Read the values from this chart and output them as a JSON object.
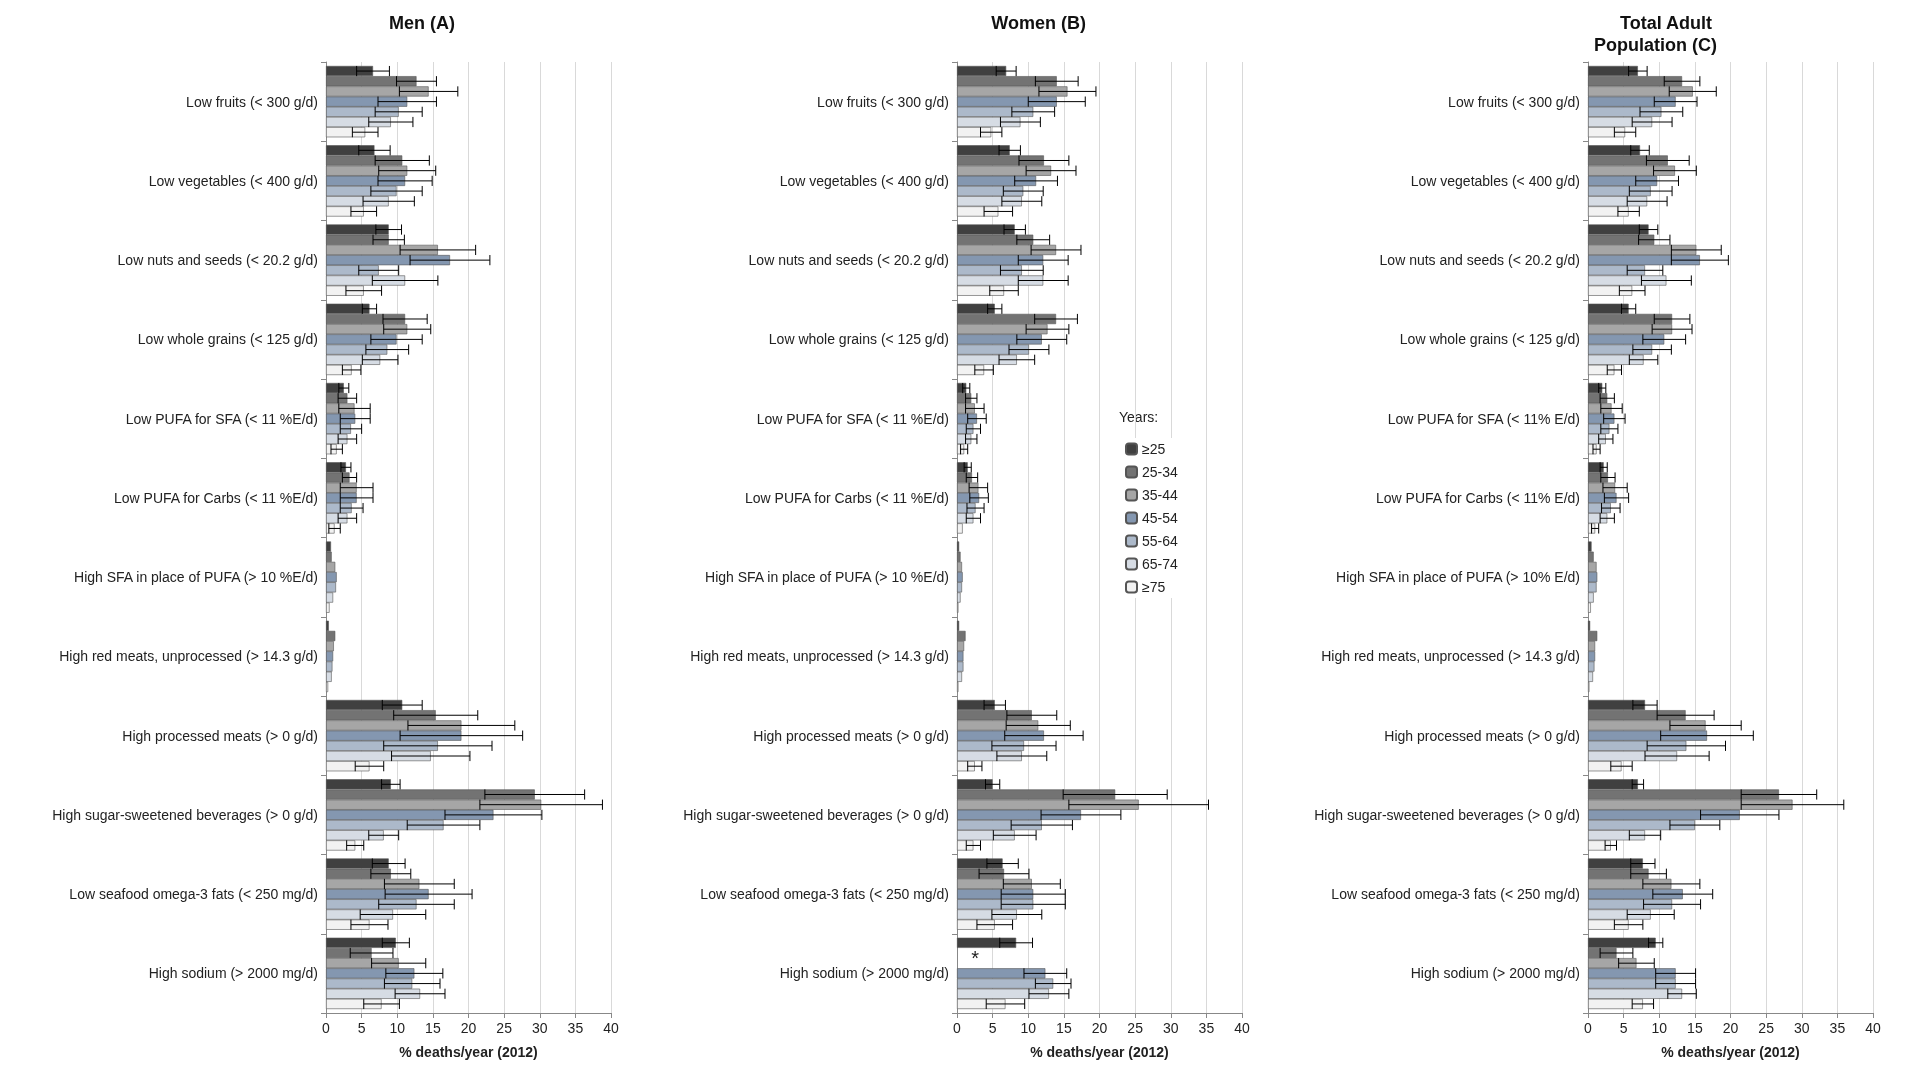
{
  "chart_data": [
    {
      "type": "bar",
      "orientation": "horizontal",
      "title": "Men (A)",
      "xlabel": "% deaths/year (2012)",
      "xlim": [
        0,
        40
      ],
      "xticks": [
        0,
        5,
        10,
        15,
        20,
        25,
        30,
        35,
        40
      ],
      "grid": "x",
      "legend": false,
      "categories": [
        "Low fruits (< 300 g/d)",
        "Low vegetables (< 400 g/d)",
        "Low nuts and seeds (< 20.2 g/d)",
        "Low whole grains (< 125 g/d)",
        "Low PUFA for SFA (< 11 %E/d)",
        "Low PUFA for Carbs (< 11 %E/d)",
        "High SFA in place of PUFA (> 10 %E/d)",
        "High red meats, unprocessed (> 14.3 g/d)",
        "High processed meats (> 0 g/d)",
        "High sugar-sweetened beverages (> 0 g/d)",
        "Low seafood omega-3 fats (< 250 mg/d)",
        "High sodium (> 2000 mg/d)"
      ],
      "series": [
        {
          "color": "#404040",
          "values": [
            6.6,
            6.8,
            8.8,
            6.1,
            2.5,
            2.8,
            0.7,
            0.4,
            10.7,
            9.1,
            8.8,
            9.8
          ],
          "errors": [
            2.3,
            2.2,
            1.8,
            1,
            0.7,
            0.7,
            null,
            null,
            2.8,
            1.3,
            2.3,
            1.9
          ]
        },
        {
          "color": "#737373",
          "values": [
            12.7,
            10.7,
            8.8,
            11.1,
            3.0,
            3.3,
            0.8,
            1.3,
            15.4,
            29.3,
            9.1,
            6.4
          ],
          "errors": [
            2.8,
            3.8,
            2.2,
            3.1,
            1.3,
            1,
            null,
            null,
            5.9,
            7,
            2.8,
            3
          ]
        },
        {
          "color": "#a6a6a6",
          "values": [
            14.4,
            11.4,
            15.7,
            11.4,
            4.0,
            4.3,
            1.3,
            1.1,
            19.0,
            30.2,
            13.1,
            10.2
          ],
          "errors": [
            4.1,
            4,
            5.3,
            3.3,
            2.2,
            2.3,
            null,
            null,
            7.5,
            8.6,
            4.9,
            3.8
          ]
        },
        {
          "color": "#8497b0",
          "values": [
            11.4,
            11.1,
            17.4,
            9.9,
            4.1,
            4.3,
            1.5,
            1.0,
            19.0,
            23.5,
            14.4,
            12.4
          ],
          "errors": [
            4.1,
            3.8,
            5.6,
            3.6,
            2.1,
            2.3,
            null,
            null,
            8.6,
            6.8,
            6.1,
            4
          ]
        },
        {
          "color": "#acb9ca",
          "values": [
            10.2,
            9.9,
            7.4,
            8.6,
            3.5,
            3.6,
            1.4,
            0.9,
            15.7,
            16.5,
            12.7,
            12.1
          ],
          "errors": [
            3.3,
            3.6,
            2.8,
            3,
            1.5,
            1.6,
            null,
            null,
            7.6,
            5.1,
            5.3,
            3.9
          ]
        },
        {
          "color": "#d6dce4",
          "values": [
            9.1,
            8.8,
            11.1,
            7.6,
            3.0,
            3.0,
            1.0,
            0.8,
            14.7,
            8.1,
            9.4,
            13.2
          ],
          "errors": [
            3.1,
            3.6,
            4.6,
            2.5,
            1.3,
            1.3,
            null,
            null,
            5.5,
            2.1,
            4.6,
            3.5
          ]
        },
        {
          "color": "#f2f2f2",
          "values": [
            5.5,
            5.3,
            5.3,
            3.6,
            1.5,
            1.2,
            0.5,
            0.3,
            6.1,
            4.1,
            6.1,
            7.8
          ],
          "errors": [
            1.8,
            1.8,
            2.5,
            1.3,
            0.8,
            0.8,
            null,
            null,
            2,
            1.2,
            2.6,
            2.5
          ]
        }
      ]
    },
    {
      "type": "bar",
      "orientation": "horizontal",
      "title": "Women (B)",
      "xlabel": "% deaths/year (2012)",
      "xlim": [
        0,
        40
      ],
      "xticks": [
        0,
        5,
        10,
        15,
        20,
        25,
        30,
        35,
        40
      ],
      "grid": "x",
      "legend": "right",
      "legend_title": "Years:",
      "categories": [
        "Low fruits (< 300 g/d)",
        "Low vegetables (< 400 g/d)",
        "Low nuts and seeds (< 20.2 g/d)",
        "Low whole grains (< 125 g/d)",
        "Low PUFA for SFA (< 11 %E/d)",
        "Low PUFA for Carbs (< 11 %E/d)",
        "High SFA in place of PUFA (> 10 %E/d)",
        "High red meats, unprocessed (> 14.3 g/d)",
        "High processed meats (> 0 g/d)",
        "High sugar-sweetened beverages (> 0 g/d)",
        "Low seafood omega-3 fats (< 250 mg/d)",
        "High sodium (> 2000 mg/d)"
      ],
      "annotations": [
        {
          "text": "*",
          "x": 2,
          "y": "High sodium (> 2000 mg/d)"
        }
      ],
      "series": [
        {
          "name": "≥25",
          "color": "#404040",
          "values": [
            6.9,
            7.4,
            8.1,
            5.3,
            1.3,
            1.5,
            0.3,
            0.3,
            5.3,
            5.0,
            6.4,
            8.3
          ],
          "errors": [
            1.4,
            1.5,
            1.5,
            1,
            0.5,
            0.5,
            null,
            null,
            1.5,
            1,
            2.2,
            2.3
          ]
        },
        {
          "name": "25-34",
          "color": "#737373",
          "values": [
            14.0,
            12.2,
            10.7,
            13.9,
            2.0,
            2.1,
            0.5,
            1.2,
            10.5,
            22.2,
            6.6,
            null
          ],
          "errors": [
            3,
            3.5,
            2.3,
            3,
            0.8,
            0.8,
            null,
            null,
            3.5,
            7.3,
            3.5,
            null
          ]
        },
        {
          "name": "35-44",
          "color": "#a6a6a6",
          "values": [
            15.5,
            13.2,
            13.9,
            12.7,
            2.5,
            3.0,
            0.7,
            1.0,
            11.4,
            25.5,
            10.5,
            null
          ],
          "errors": [
            4,
            3.5,
            3.5,
            3,
            1.3,
            1.3,
            null,
            null,
            4.5,
            9.8,
            4,
            null
          ]
        },
        {
          "name": "45-54",
          "color": "#8497b0",
          "values": [
            14.0,
            11.1,
            12.1,
            11.9,
            2.8,
            3.1,
            0.8,
            0.9,
            12.2,
            17.4,
            10.7,
            12.4
          ],
          "errors": [
            4,
            3,
            3.5,
            3.5,
            1.3,
            1.3,
            null,
            null,
            5.5,
            5.6,
            4.5,
            3
          ]
        },
        {
          "name": "55-64",
          "color": "#acb9ca",
          "values": [
            10.7,
            9.3,
            9.1,
            10.1,
            2.3,
            2.6,
            0.7,
            0.9,
            9.4,
            11.9,
            10.7,
            13.5
          ],
          "errors": [
            3,
            2.8,
            3,
            2.8,
            1,
            1.2,
            null,
            null,
            4.5,
            4.3,
            4.5,
            2.5
          ]
        },
        {
          "name": "65-74",
          "color": "#d6dce4",
          "values": [
            8.9,
            9.1,
            12.1,
            8.4,
            2.0,
            2.3,
            0.5,
            0.7,
            9.1,
            8.1,
            8.4,
            12.9
          ],
          "errors": [
            2.8,
            2.8,
            3.5,
            2.5,
            0.8,
            1,
            null,
            null,
            3.5,
            3,
            3.5,
            2.8
          ]
        },
        {
          "name": "≥75",
          "color": "#f2f2f2",
          "values": [
            4.8,
            5.8,
            6.6,
            3.8,
            1.0,
            0.8,
            0.2,
            0.2,
            2.5,
            2.3,
            5.3,
            6.8
          ],
          "errors": [
            1.5,
            2,
            2,
            1.3,
            0.5,
            null,
            null,
            null,
            1,
            1,
            2.5,
            2.7
          ]
        }
      ]
    },
    {
      "type": "bar",
      "orientation": "horizontal",
      "title": "Total Adult Population (C)",
      "xlabel": "% deaths/year (2012)",
      "xlim": [
        0,
        40
      ],
      "xticks": [
        0,
        5,
        10,
        15,
        20,
        25,
        30,
        35,
        40
      ],
      "grid": "x",
      "legend": false,
      "categories": [
        "Low fruits (< 300 g/d)",
        "Low vegetables (< 400 g/d)",
        "Low nuts and seeds (< 20.2 g/d)",
        "Low whole grains (< 125 g/d)",
        "Low PUFA for SFA (< 11% E/d)",
        "Low PUFA for Carbs (< 11% E/d)",
        "High SFA in place of PUFA (> 10% E/d)",
        "High red meats, unprocessed (> 14.3 g/d)",
        "High processed meats (> 0 g/d)",
        "High sugar-sweetened beverages (> 0 g/d)",
        "Low seafood omega-3 fats (< 250 mg/d)",
        "High sodium (> 2000 mg/d)"
      ],
      "series": [
        {
          "color": "#404040",
          "values": [
            7.0,
            7.3,
            8.5,
            5.7,
            2.0,
            2.2,
            0.5,
            0.3,
            8.0,
            7.0,
            7.7,
            9.5
          ],
          "errors": [
            1.3,
            1.3,
            1.3,
            1,
            0.5,
            0.5,
            null,
            null,
            1.7,
            0.8,
            1.7,
            1
          ]
        },
        {
          "color": "#737373",
          "values": [
            13.2,
            11.2,
            9.3,
            11.8,
            2.7,
            2.8,
            0.8,
            1.3,
            13.7,
            26.8,
            8.5,
            4.0
          ],
          "errors": [
            2.5,
            3,
            2.2,
            2.5,
            1,
            1,
            null,
            null,
            4,
            5.3,
            2.5,
            2.3
          ]
        },
        {
          "color": "#a6a6a6",
          "values": [
            14.7,
            12.2,
            15.2,
            11.8,
            3.3,
            3.8,
            1.2,
            1.0,
            16.5,
            28.7,
            11.7,
            6.8
          ],
          "errors": [
            3.3,
            3,
            3.5,
            2.8,
            1.5,
            1.7,
            null,
            null,
            5,
            7.2,
            4,
            2.5
          ]
        },
        {
          "color": "#8497b0",
          "values": [
            12.3,
            9.7,
            15.7,
            10.7,
            3.7,
            4.0,
            1.3,
            1.0,
            16.7,
            21.3,
            13.3,
            12.3
          ],
          "errors": [
            3,
            3,
            4,
            3,
            1.5,
            1.7,
            null,
            null,
            6.5,
            5.5,
            4.2,
            2.8
          ]
        },
        {
          "color": "#acb9ca",
          "values": [
            10.3,
            8.8,
            8.0,
            9.0,
            3.0,
            3.2,
            1.2,
            0.9,
            13.8,
            15.0,
            11.8,
            12.3
          ],
          "errors": [
            3,
            3,
            2.5,
            2.7,
            1.2,
            1.3,
            null,
            null,
            5.5,
            3.5,
            4,
            2.8
          ]
        },
        {
          "color": "#d6dce4",
          "values": [
            9.0,
            8.3,
            11.0,
            7.8,
            2.5,
            2.7,
            0.8,
            0.7,
            12.5,
            8.0,
            8.8,
            13.2
          ],
          "errors": [
            2.8,
            2.8,
            3.5,
            2,
            1,
            1,
            null,
            null,
            4.5,
            2.2,
            3.3,
            2
          ]
        },
        {
          "color": "#f2f2f2",
          "values": [
            5.2,
            5.7,
            6.2,
            3.7,
            1.2,
            1.0,
            0.4,
            0.2,
            4.7,
            3.2,
            5.7,
            7.7
          ],
          "errors": [
            1.5,
            1.5,
            1.8,
            1,
            0.5,
            0.5,
            null,
            null,
            1.5,
            0.8,
            2,
            1.5
          ]
        }
      ]
    }
  ]
}
